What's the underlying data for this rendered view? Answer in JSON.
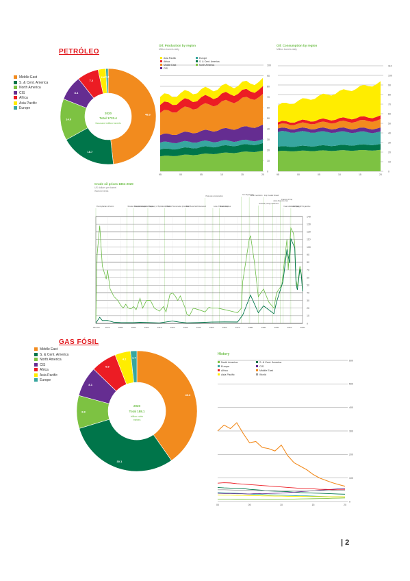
{
  "colors": {
    "middle_east": "#f28b1e",
    "sca": "#00754a",
    "north_america": "#7dc242",
    "cis": "#652d91",
    "africa": "#ec1c24",
    "asia_pacific": "#ffed00",
    "europe": "#37a69f",
    "green": "#6bbd45",
    "dark_green": "#00754a"
  },
  "oil": {
    "title": "PETRÓLEO",
    "legend": [
      "Middle East",
      "S. & Cent. America",
      "North America",
      "CIS",
      "Africa",
      "Asia Pacific",
      "Europe"
    ],
    "donut": {
      "year": "2020",
      "total": "Total 1732.4",
      "unit": "thousand million barrels",
      "values": [
        835.9,
        323.4,
        242.9,
        146.2,
        125.1,
        45.2,
        13.6
      ],
      "labels": [
        "48.3",
        "18.7",
        "14.0",
        "8.4",
        "7.2",
        "2.6",
        "0.8"
      ]
    },
    "production": {
      "title": "Oil: Production by region",
      "subtitle": "Million barrels daily",
      "legend": [
        "Asia Pacific",
        "Africa",
        "Middle East",
        "CIS",
        "Europe",
        "S. & Cent. America",
        "North America"
      ],
      "yticks": [
        "0",
        "10",
        "20",
        "30",
        "40",
        "50",
        "60",
        "70",
        "80",
        "90",
        "100"
      ],
      "xticks": [
        "95",
        "00",
        "05",
        "10",
        "15",
        "20"
      ]
    },
    "consumption": {
      "title": "Oil: Consumption by region",
      "subtitle": "Million barrels daily",
      "yticks": [
        "0",
        "10",
        "20",
        "30",
        "40",
        "50",
        "60",
        "70",
        "80",
        "90",
        "100",
        "110"
      ],
      "xticks": [
        "95",
        "00",
        "05",
        "10",
        "15",
        "20"
      ]
    },
    "crude": {
      "title": "Crude oil prices 1861-2020",
      "subtitle": "US dollars per barrel",
      "note": "World events",
      "events": [
        "Pennsylvanian oil boom",
        "Russian oil exports began",
        "Sumatra production began",
        "Discovery of Spindletop, Texas",
        "Post-war reconstruction",
        "Loss of Iranian supplies",
        "Suez crisis",
        "Yom Kippur war",
        "Iranian revolution",
        "Iraq invaded Kuwait",
        "Asian financial crisis",
        "Netback pricing introduced",
        "Invasion of Iraq",
        "Arab Spring",
        "Fears about shortage of US gasoline",
        "East Texas field discovered",
        "Growth of Venezuelan production"
      ],
      "yticks": [
        "0",
        "10",
        "20",
        "30",
        "40",
        "50",
        "60",
        "70",
        "80",
        "90",
        "100",
        "110",
        "120",
        "130",
        "140"
      ],
      "xticks": [
        "1861-69",
        "1870",
        "1880",
        "1890",
        "1900",
        "1910",
        "1920",
        "1930",
        "1940",
        "1950",
        "1960",
        "1970",
        "1980",
        "1990",
        "2000",
        "2010",
        "2020"
      ]
    }
  },
  "gas": {
    "title": "GAS FÓSIL",
    "legend": [
      "Middle East",
      "S. & Cent. America",
      "North America",
      "CIS",
      "Africa",
      "Asia Pacific",
      "Europe"
    ],
    "donut": {
      "year": "2020",
      "total": "Total 188.1",
      "unit": "trillion cubic metres",
      "values": [
        75.8,
        56.6,
        16.6,
        15.2,
        12.9,
        7.9,
        3.2
      ],
      "labels": [
        "40.3",
        "30.1",
        "8.8",
        "8.1",
        "6.9",
        "4.2",
        "1.7"
      ]
    },
    "history": {
      "title": "History",
      "legend": [
        "North America",
        "S. & Cent. America",
        "Europe",
        "CIS",
        "Africa",
        "Middle East",
        "Asia Pacific",
        "World"
      ],
      "yticks": [
        "0",
        "100",
        "200",
        "300",
        "400",
        "500",
        "600"
      ],
      "xticks": [
        "00",
        "05",
        "10",
        "15",
        "20"
      ]
    }
  },
  "page": "| 2"
}
